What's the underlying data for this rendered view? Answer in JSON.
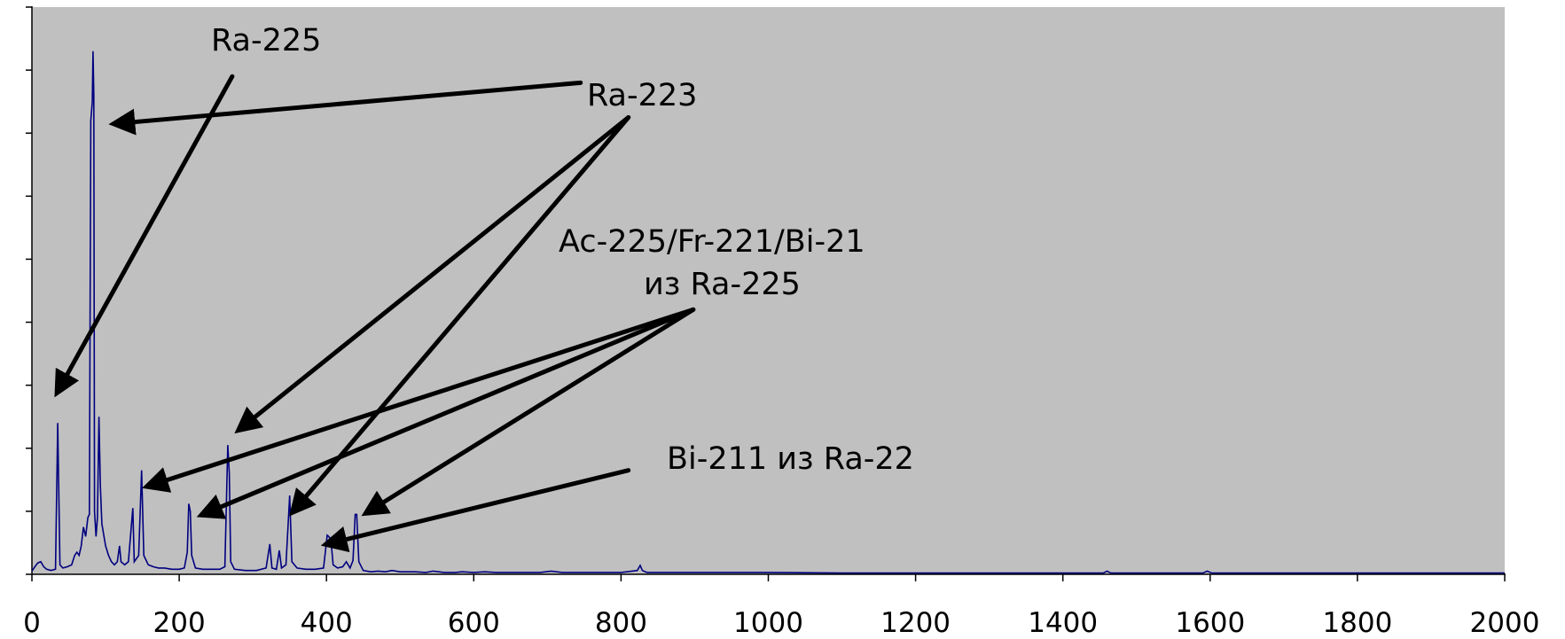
{
  "chart_data": {
    "type": "line",
    "title": "",
    "xlabel": "",
    "ylabel": "",
    "xlim": [
      0,
      2000
    ],
    "ylim": [
      0,
      9
    ],
    "x_ticks": [
      "0",
      "200",
      "400",
      "600",
      "800",
      "1000",
      "1200",
      "1400",
      "1600",
      "1800",
      "2000"
    ],
    "y_tick_count": 9,
    "y_tick_labels_visible": false,
    "grid": false,
    "plot_background": "#c0c0c0",
    "series_color": "#000080",
    "series": [
      {
        "points": [
          [
            0,
            0.05
          ],
          [
            4,
            0.12
          ],
          [
            8,
            0.18
          ],
          [
            12,
            0.2
          ],
          [
            16,
            0.12
          ],
          [
            20,
            0.08
          ],
          [
            26,
            0.06
          ],
          [
            32,
            0.08
          ],
          [
            35,
            2.4
          ],
          [
            38,
            0.15
          ],
          [
            42,
            0.1
          ],
          [
            48,
            0.12
          ],
          [
            54,
            0.15
          ],
          [
            58,
            0.3
          ],
          [
            61,
            0.35
          ],
          [
            64,
            0.3
          ],
          [
            67,
            0.45
          ],
          [
            70,
            0.75
          ],
          [
            73,
            0.6
          ],
          [
            76,
            0.9
          ],
          [
            78,
            0.95
          ],
          [
            80,
            7.2
          ],
          [
            82,
            7.5
          ],
          [
            83,
            8.3
          ],
          [
            84,
            7.6
          ],
          [
            85,
            1.0
          ],
          [
            87,
            0.6
          ],
          [
            89,
            0.9
          ],
          [
            91,
            2.5
          ],
          [
            93,
            1.4
          ],
          [
            95,
            0.8
          ],
          [
            100,
            0.45
          ],
          [
            104,
            0.3
          ],
          [
            108,
            0.2
          ],
          [
            112,
            0.15
          ],
          [
            116,
            0.2
          ],
          [
            119,
            0.45
          ],
          [
            121,
            0.2
          ],
          [
            126,
            0.15
          ],
          [
            131,
            0.2
          ],
          [
            137,
            1.05
          ],
          [
            139,
            0.2
          ],
          [
            145,
            0.3
          ],
          [
            149,
            1.65
          ],
          [
            152,
            0.3
          ],
          [
            158,
            0.15
          ],
          [
            165,
            0.12
          ],
          [
            172,
            0.1
          ],
          [
            180,
            0.1
          ],
          [
            190,
            0.08
          ],
          [
            200,
            0.08
          ],
          [
            207,
            0.1
          ],
          [
            211,
            0.35
          ],
          [
            213,
            1.12
          ],
          [
            215,
            1.0
          ],
          [
            217,
            0.3
          ],
          [
            222,
            0.1
          ],
          [
            232,
            0.08
          ],
          [
            245,
            0.08
          ],
          [
            255,
            0.08
          ],
          [
            262,
            0.12
          ],
          [
            266,
            2.05
          ],
          [
            268,
            1.6
          ],
          [
            270,
            0.2
          ],
          [
            275,
            0.08
          ],
          [
            290,
            0.06
          ],
          [
            305,
            0.06
          ],
          [
            318,
            0.1
          ],
          [
            323,
            0.48
          ],
          [
            326,
            0.1
          ],
          [
            332,
            0.08
          ],
          [
            336,
            0.38
          ],
          [
            339,
            0.1
          ],
          [
            345,
            0.15
          ],
          [
            350,
            1.25
          ],
          [
            353,
            0.2
          ],
          [
            360,
            0.1
          ],
          [
            372,
            0.08
          ],
          [
            385,
            0.08
          ],
          [
            396,
            0.1
          ],
          [
            401,
            0.62
          ],
          [
            403,
            0.6
          ],
          [
            406,
            0.55
          ],
          [
            409,
            0.15
          ],
          [
            415,
            0.1
          ],
          [
            422,
            0.12
          ],
          [
            427,
            0.2
          ],
          [
            432,
            0.1
          ],
          [
            436,
            0.22
          ],
          [
            439,
            0.95
          ],
          [
            441,
            0.95
          ],
          [
            444,
            0.2
          ],
          [
            450,
            0.06
          ],
          [
            460,
            0.04
          ],
          [
            470,
            0.05
          ],
          [
            480,
            0.04
          ],
          [
            489,
            0.06
          ],
          [
            500,
            0.04
          ],
          [
            510,
            0.04
          ],
          [
            520,
            0.04
          ],
          [
            535,
            0.03
          ],
          [
            545,
            0.05
          ],
          [
            560,
            0.03
          ],
          [
            575,
            0.03
          ],
          [
            584,
            0.04
          ],
          [
            600,
            0.03
          ],
          [
            615,
            0.04
          ],
          [
            630,
            0.03
          ],
          [
            650,
            0.03
          ],
          [
            670,
            0.03
          ],
          [
            690,
            0.03
          ],
          [
            705,
            0.05
          ],
          [
            720,
            0.03
          ],
          [
            740,
            0.03
          ],
          [
            760,
            0.03
          ],
          [
            780,
            0.03
          ],
          [
            800,
            0.03
          ],
          [
            815,
            0.05
          ],
          [
            822,
            0.06
          ],
          [
            826,
            0.14
          ],
          [
            829,
            0.06
          ],
          [
            835,
            0.03
          ],
          [
            860,
            0.03
          ],
          [
            880,
            0.03
          ],
          [
            900,
            0.03
          ],
          [
            920,
            0.03
          ],
          [
            940,
            0.03
          ],
          [
            960,
            0.03
          ],
          [
            980,
            0.03
          ],
          [
            1000,
            0.03
          ],
          [
            1100,
            0.02
          ],
          [
            1200,
            0.02
          ],
          [
            1300,
            0.02
          ],
          [
            1400,
            0.02
          ],
          [
            1455,
            0.02
          ],
          [
            1460,
            0.05
          ],
          [
            1465,
            0.02
          ],
          [
            1500,
            0.02
          ],
          [
            1590,
            0.02
          ],
          [
            1596,
            0.05
          ],
          [
            1602,
            0.02
          ],
          [
            1700,
            0.02
          ],
          [
            1800,
            0.02
          ],
          [
            1900,
            0.02
          ],
          [
            2000,
            0.02
          ]
        ]
      }
    ],
    "annotations": [
      {
        "text": "Ra-225",
        "arrows": [
          [
            272,
            7.9,
            35,
            2.9
          ]
        ]
      },
      {
        "text": "Ra-223",
        "arrows": [
          [
            745,
            7.8,
            113,
            7.15
          ],
          [
            810,
            7.25,
            282,
            2.3
          ],
          [
            810,
            7.25,
            355,
            1.0
          ]
        ]
      },
      {
        "text": "Ac-225/Fr-221/Bi-21",
        "text2": "из Ra-225",
        "arrows": [
          [
            898,
            4.2,
            158,
            1.4
          ],
          [
            898,
            4.2,
            232,
            0.95
          ],
          [
            898,
            4.2,
            455,
            0.98
          ]
        ]
      },
      {
        "text": "Bi-211 из Ra-22",
        "arrows": [
          [
            810,
            1.65,
            401,
            0.48
          ]
        ]
      }
    ]
  }
}
